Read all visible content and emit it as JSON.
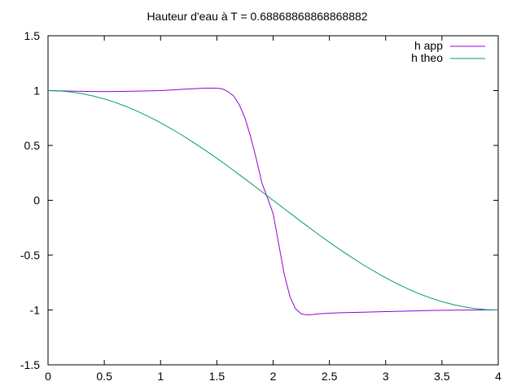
{
  "chart_data": {
    "type": "line",
    "title": "Hauteur d'eau à T =   0.68868868868868882",
    "xlabel": "",
    "ylabel": "",
    "xlim": [
      0,
      4
    ],
    "ylim": [
      -1.5,
      1.5
    ],
    "x_ticks": [
      0,
      0.5,
      1,
      1.5,
      2,
      2.5,
      3,
      3.5,
      4
    ],
    "x_tick_labels": [
      "0",
      "0.5",
      "1",
      "1.5",
      "2",
      "2.5",
      "3",
      "3.5",
      "4"
    ],
    "y_ticks": [
      -1.5,
      -1,
      -0.5,
      0,
      0.5,
      1,
      1.5
    ],
    "y_tick_labels": [
      "-1.5",
      "-1",
      "-0.5",
      "0",
      "0.5",
      "1",
      "1.5"
    ],
    "grid": false,
    "legend_position": "top-right",
    "series": [
      {
        "name": "h app",
        "color": "#9400d3",
        "x": [
          0,
          0.2,
          0.4,
          0.6,
          0.8,
          1.0,
          1.2,
          1.3,
          1.4,
          1.5,
          1.55,
          1.6,
          1.65,
          1.7,
          1.75,
          1.8,
          1.85,
          1.9,
          1.95,
          2.0,
          2.05,
          2.1,
          2.15,
          2.2,
          2.25,
          2.3,
          2.35,
          2.4,
          2.5,
          2.6,
          2.8,
          3.0,
          3.2,
          3.4,
          3.6,
          3.8,
          4.0
        ],
        "y": [
          1.0,
          0.995,
          0.992,
          0.992,
          0.995,
          1.0,
          1.012,
          1.018,
          1.022,
          1.022,
          1.015,
          0.99,
          0.95,
          0.87,
          0.75,
          0.58,
          0.38,
          0.16,
          0.02,
          -0.12,
          -0.4,
          -0.68,
          -0.88,
          -0.99,
          -1.035,
          -1.045,
          -1.042,
          -1.035,
          -1.03,
          -1.025,
          -1.02,
          -1.015,
          -1.01,
          -1.005,
          -1.002,
          -1.0,
          -1.0
        ]
      },
      {
        "name": "h theo",
        "color": "#009e73",
        "x": [
          0,
          0.1,
          0.2,
          0.3,
          0.4,
          0.5,
          0.6,
          0.7,
          0.8,
          0.9,
          1.0,
          1.1,
          1.2,
          1.3,
          1.4,
          1.5,
          1.6,
          1.7,
          1.8,
          1.9,
          2.0,
          2.1,
          2.2,
          2.3,
          2.4,
          2.5,
          2.6,
          2.7,
          2.8,
          2.9,
          3.0,
          3.1,
          3.2,
          3.3,
          3.4,
          3.5,
          3.6,
          3.7,
          3.8,
          3.9,
          4.0
        ],
        "y": [
          1.0,
          0.997,
          0.988,
          0.972,
          0.951,
          0.924,
          0.891,
          0.853,
          0.809,
          0.76,
          0.707,
          0.649,
          0.588,
          0.522,
          0.454,
          0.383,
          0.309,
          0.233,
          0.156,
          0.078,
          0.0,
          -0.078,
          -0.156,
          -0.233,
          -0.309,
          -0.383,
          -0.454,
          -0.522,
          -0.588,
          -0.649,
          -0.707,
          -0.76,
          -0.809,
          -0.853,
          -0.891,
          -0.924,
          -0.951,
          -0.972,
          -0.988,
          -0.997,
          -1.0
        ]
      }
    ]
  }
}
